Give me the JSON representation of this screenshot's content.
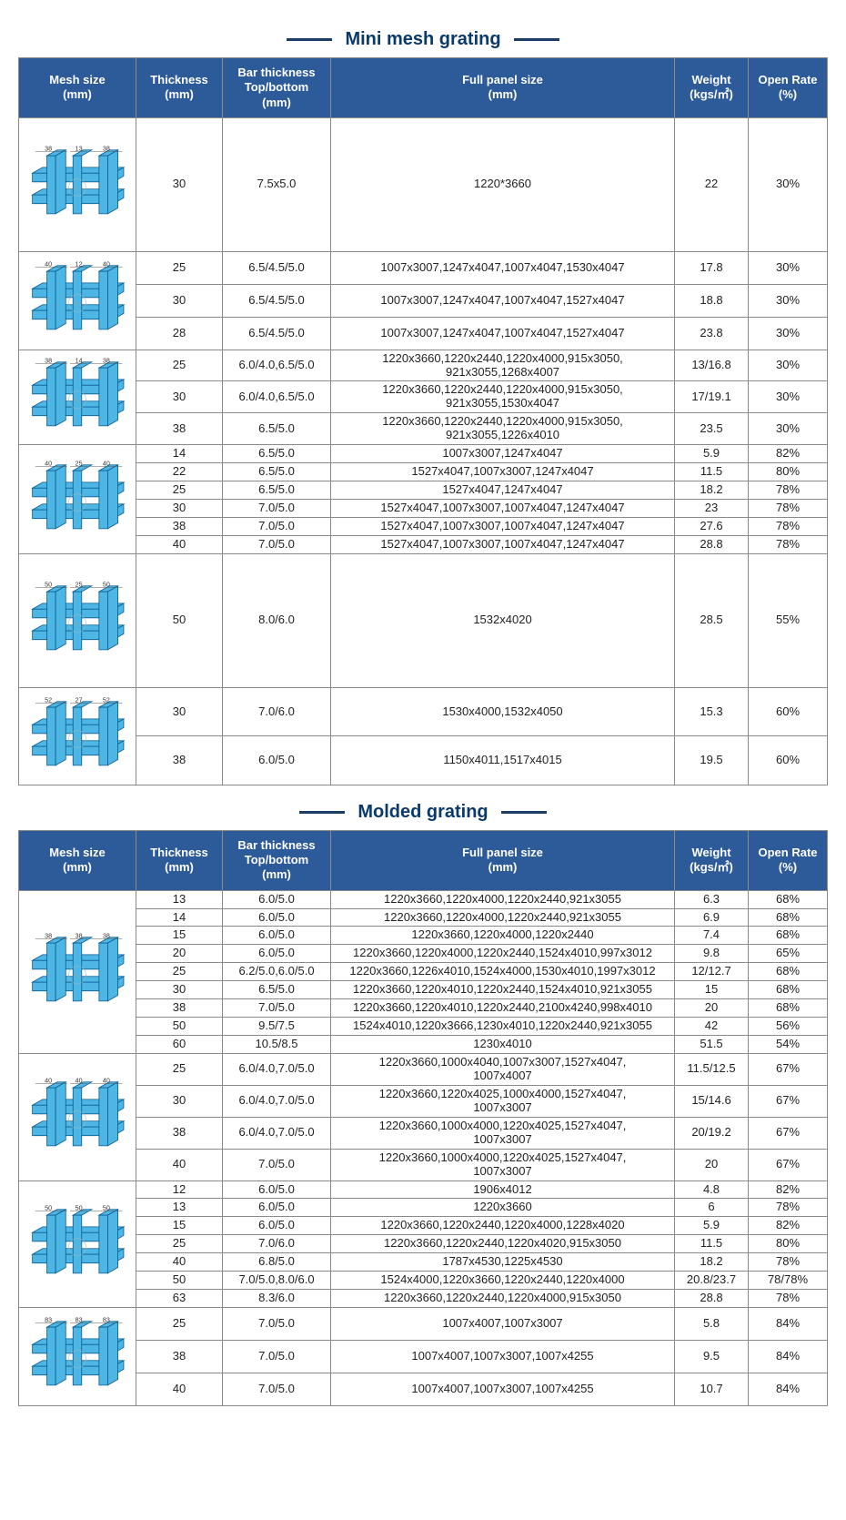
{
  "titles": {
    "mini": "Mini mesh grating",
    "molded": "Molded grating"
  },
  "headers": {
    "mesh": "Mesh size\n(mm)",
    "thk": "Thickness\n(mm)",
    "bar": "Bar thickness\nTop/bottom\n(mm)",
    "panel": "Full panel size\n(mm)",
    "wt": "Weight\n(kgs/㎡)",
    "or": "Open Rate\n(%)"
  },
  "mini": {
    "groups": [
      {
        "img": {
          "a": 38,
          "b": 13
        },
        "rows": [
          {
            "thk": "30",
            "bar": "7.5x5.0",
            "panel": "1220*3660",
            "wt": "22",
            "or": "30%",
            "pad": "tall"
          }
        ]
      },
      {
        "img": {
          "a": 40,
          "b": 12
        },
        "rows": [
          {
            "thk": "25",
            "bar": "6.5/4.5/5.0",
            "panel": "1007x3007,1247x4047,1007x4047,1530x4047",
            "wt": "17.8",
            "or": "30%",
            "pad": "med"
          },
          {
            "thk": "30",
            "bar": "6.5/4.5/5.0",
            "panel": "1007x3007,1247x4047,1007x4047,1527x4047",
            "wt": "18.8",
            "or": "30%",
            "pad": "med"
          },
          {
            "thk": "28",
            "bar": "6.5/4.5/5.0",
            "panel": "1007x3007,1247x4047,1007x4047,1527x4047",
            "wt": "23.8",
            "or": "30%",
            "pad": "med"
          }
        ]
      },
      {
        "img": {
          "a": 38,
          "b": 14
        },
        "rows": [
          {
            "thk": "25",
            "bar": "6.0/4.0,6.5/5.0",
            "panel": "1220x3660,1220x2440,1220x4000,915x3050,\n921x3055,1268x4007",
            "wt": "13/16.8",
            "or": "30%"
          },
          {
            "thk": "30",
            "bar": "6.0/4.0,6.5/5.0",
            "panel": "1220x3660,1220x2440,1220x4000,915x3050,\n921x3055,1530x4047",
            "wt": "17/19.1",
            "or": "30%"
          },
          {
            "thk": "38",
            "bar": "6.5/5.0",
            "panel": "1220x3660,1220x2440,1220x4000,915x3050,\n921x3055,1226x4010",
            "wt": "23.5",
            "or": "30%"
          }
        ]
      },
      {
        "img": {
          "a": 40,
          "b": 25
        },
        "rows": [
          {
            "thk": "14",
            "bar": "6.5/5.0",
            "panel": "1007x3007,1247x4047",
            "wt": "5.9",
            "or": "82%"
          },
          {
            "thk": "22",
            "bar": "6.5/5.0",
            "panel": "1527x4047,1007x3007,1247x4047",
            "wt": "11.5",
            "or": "80%"
          },
          {
            "thk": "25",
            "bar": "6.5/5.0",
            "panel": "1527x4047,1247x4047",
            "wt": "18.2",
            "or": "78%"
          },
          {
            "thk": "30",
            "bar": "7.0/5.0",
            "panel": "1527x4047,1007x3007,1007x4047,1247x4047",
            "wt": "23",
            "or": "78%"
          },
          {
            "thk": "38",
            "bar": "7.0/5.0",
            "panel": "1527x4047,1007x3007,1007x4047,1247x4047",
            "wt": "27.6",
            "or": "78%"
          },
          {
            "thk": "40",
            "bar": "7.0/5.0",
            "panel": "1527x4047,1007x3007,1007x4047,1247x4047",
            "wt": "28.8",
            "or": "78%"
          }
        ]
      },
      {
        "img": {
          "a": 50,
          "b": 25
        },
        "rows": [
          {
            "thk": "50",
            "bar": "8.0/6.0",
            "panel": "1532x4020",
            "wt": "28.5",
            "or": "55%",
            "pad": "tall"
          }
        ]
      },
      {
        "img": {
          "a": 52,
          "b": 27
        },
        "rows": [
          {
            "thk": "30",
            "bar": "7.0/6.0",
            "panel": "1530x4000,1532x4050",
            "wt": "15.3",
            "or": "60%",
            "pad": "med"
          },
          {
            "thk": "38",
            "bar": "6.0/5.0",
            "panel": "1150x4011,1517x4015",
            "wt": "19.5",
            "or": "60%",
            "pad": "med"
          }
        ]
      }
    ]
  },
  "molded": {
    "groups": [
      {
        "img": {
          "a": 38,
          "b": 38
        },
        "rows": [
          {
            "thk": "13",
            "bar": "6.0/5.0",
            "panel": "1220x3660,1220x4000,1220x2440,921x3055",
            "wt": "6.3",
            "or": "68%"
          },
          {
            "thk": "14",
            "bar": "6.0/5.0",
            "panel": "1220x3660,1220x4000,1220x2440,921x3055",
            "wt": "6.9",
            "or": "68%"
          },
          {
            "thk": "15",
            "bar": "6.0/5.0",
            "panel": "1220x3660,1220x4000,1220x2440",
            "wt": "7.4",
            "or": "68%"
          },
          {
            "thk": "20",
            "bar": "6.0/5.0",
            "panel": "1220x3660,1220x4000,1220x2440,1524x4010,997x3012",
            "wt": "9.8",
            "or": "65%"
          },
          {
            "thk": "25",
            "bar": "6.2/5.0,6.0/5.0",
            "panel": "1220x3660,1226x4010,1524x4000,1530x4010,1997x3012",
            "wt": "12/12.7",
            "or": "68%"
          },
          {
            "thk": "30",
            "bar": "6.5/5.0",
            "panel": "1220x3660,1220x4010,1220x2440,1524x4010,921x3055",
            "wt": "15",
            "or": "68%"
          },
          {
            "thk": "38",
            "bar": "7.0/5.0",
            "panel": "1220x3660,1220x4010,1220x2440,2100x4240,998x4010",
            "wt": "20",
            "or": "68%"
          },
          {
            "thk": "50",
            "bar": "9.5/7.5",
            "panel": "1524x4010,1220x3666,1230x4010,1220x2440,921x3055",
            "wt": "42",
            "or": "56%"
          },
          {
            "thk": "60",
            "bar": "10.5/8.5",
            "panel": "1230x4010",
            "wt": "51.5",
            "or": "54%"
          }
        ]
      },
      {
        "img": {
          "a": 40,
          "b": 40
        },
        "rows": [
          {
            "thk": "25",
            "bar": "6.0/4.0,7.0/5.0",
            "panel": "1220x3660,1000x4040,1007x3007,1527x4047,\n1007x4007",
            "wt": "11.5/12.5",
            "or": "67%"
          },
          {
            "thk": "30",
            "bar": "6.0/4.0,7.0/5.0",
            "panel": "1220x3660,1220x4025,1000x4000,1527x4047,\n1007x3007",
            "wt": "15/14.6",
            "or": "67%"
          },
          {
            "thk": "38",
            "bar": "6.0/4.0,7.0/5.0",
            "panel": "1220x3660,1000x4000,1220x4025,1527x4047,\n1007x3007",
            "wt": "20/19.2",
            "or": "67%"
          },
          {
            "thk": "40",
            "bar": "7.0/5.0",
            "panel": "1220x3660,1000x4000,1220x4025,1527x4047,\n1007x3007",
            "wt": "20",
            "or": "67%"
          }
        ]
      },
      {
        "img": {
          "a": 50,
          "b": 50
        },
        "rows": [
          {
            "thk": "12",
            "bar": "6.0/5.0",
            "panel": "1906x4012",
            "wt": "4.8",
            "or": "82%"
          },
          {
            "thk": "13",
            "bar": "6.0/5.0",
            "panel": "1220x3660",
            "wt": "6",
            "or": "78%"
          },
          {
            "thk": "15",
            "bar": "6.0/5.0",
            "panel": "1220x3660,1220x2440,1220x4000,1228x4020",
            "wt": "5.9",
            "or": "82%"
          },
          {
            "thk": "25",
            "bar": "7.0/6.0",
            "panel": "1220x3660,1220x2440,1220x4020,915x3050",
            "wt": "11.5",
            "or": "80%"
          },
          {
            "thk": "40",
            "bar": "6.8/5.0",
            "panel": "1787x4530,1225x4530",
            "wt": "18.2",
            "or": "78%"
          },
          {
            "thk": "50",
            "bar": "7.0/5.0,8.0/6.0",
            "panel": "1524x4000,1220x3660,1220x2440,1220x4000",
            "wt": "20.8/23.7",
            "or": "78/78%"
          },
          {
            "thk": "63",
            "bar": "8.3/6.0",
            "panel": "1220x3660,1220x2440,1220x4000,915x3050",
            "wt": "28.8",
            "or": "78%"
          }
        ]
      },
      {
        "img": {
          "a": 83,
          "b": 83
        },
        "rows": [
          {
            "thk": "25",
            "bar": "7.0/5.0",
            "panel": "1007x4007,1007x3007",
            "wt": "5.8",
            "or": "84%",
            "pad": "med"
          },
          {
            "thk": "38",
            "bar": "7.0/5.0",
            "panel": "1007x4007,1007x3007,1007x4255",
            "wt": "9.5",
            "or": "84%",
            "pad": "med"
          },
          {
            "thk": "40",
            "bar": "7.0/5.0",
            "panel": "1007x4007,1007x3007,1007x4255",
            "wt": "10.7",
            "or": "84%",
            "pad": "med"
          }
        ]
      }
    ]
  },
  "colors": {
    "header_bg": "#2d5a99",
    "mesh_fill": "#4db6e4",
    "mesh_stroke": "#0a5a8f"
  }
}
